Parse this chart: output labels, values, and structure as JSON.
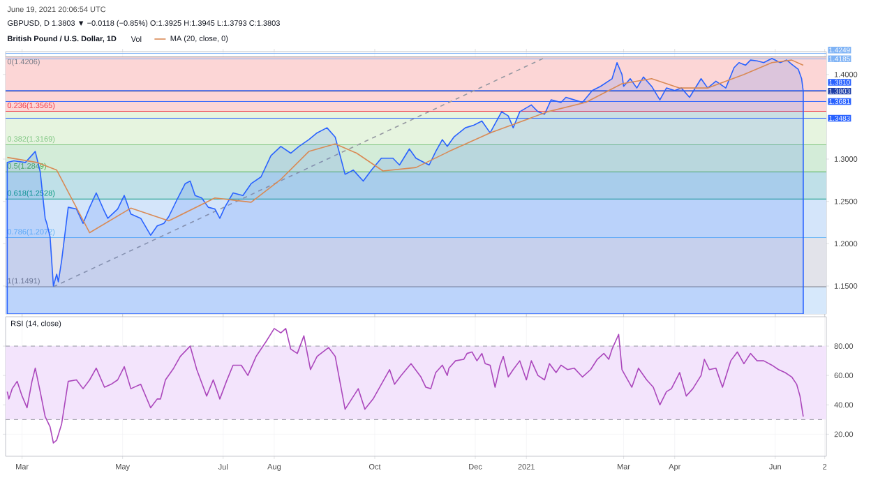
{
  "chart_data": [
    {
      "type": "line",
      "title": "British Pound / U.S. Dollar, 1D",
      "subtitle": "GBPUSD, D  1.3803 ▼ −0.0118 (−0.85%) O:1.3925 H:1.3945 L:1.3793 C:1.3803",
      "annotations": [
        "June 19, 2021 20:06:54 UTC",
        "Vol"
      ],
      "xlim": [
        "2020-02-20",
        "2021-07-02"
      ],
      "xticks": [
        {
          "value": "2020-03-01",
          "label": null
        },
        {
          "value": "2020-05-01",
          "label": null
        },
        {
          "value": "2020-07-01",
          "label": null
        },
        {
          "value": "2020-08-01",
          "label": null
        },
        {
          "value": "2020-10-01",
          "label": null
        },
        {
          "value": "2020-12-01",
          "label": null
        },
        {
          "value": "2021-01-01",
          "label": null
        },
        {
          "value": "2021-03-01",
          "label": null
        },
        {
          "value": "2021-04-01",
          "label": null
        },
        {
          "value": "2021-06-01",
          "label": null
        },
        {
          "value": "2021-07-01",
          "label": null
        }
      ],
      "ylim": [
        1.117,
        1.427
      ],
      "yticks": [
        {
          "value": 1.15,
          "label": "1.1500"
        },
        {
          "value": 1.2,
          "label": "1.2000"
        },
        {
          "value": 1.25,
          "label": "1.2500"
        },
        {
          "value": 1.3,
          "label": "1.3000"
        },
        {
          "value": 1.4,
          "label": "1.4000"
        }
      ],
      "y2lim": [
        1.117,
        1.427
      ],
      "tick_labels": "y",
      "grid": true,
      "legend": "top left",
      "marker": "none",
      "bands": [
        {
          "axis": "y",
          "from": 1.3565,
          "to": 1.4206,
          "color": "#fcd6d6"
        },
        {
          "axis": "y",
          "from": 1.3169,
          "to": 1.3565,
          "color": "#e6f4df"
        },
        {
          "axis": "y",
          "from": 1.2849,
          "to": 1.3169,
          "color": "#d3ecd8"
        },
        {
          "axis": "y",
          "from": 1.2528,
          "to": 1.2849,
          "color": "#bfe0e8"
        },
        {
          "axis": "y",
          "from": 1.2072,
          "to": 1.2528,
          "color": "#d4e5fa"
        },
        {
          "axis": "y",
          "from": 1.1491,
          "to": 1.2072,
          "color": "#e2e3ea"
        },
        {
          "axis": "y",
          "from": 1.117,
          "to": 1.1491,
          "color": "#d6e8fb"
        }
      ],
      "ref_lines": [
        {
          "axis": "y",
          "value": 1.4206,
          "label": "0(1.4206)",
          "color": "#787b86"
        },
        {
          "axis": "y",
          "value": 1.3565,
          "label": "0.236(1.3565)",
          "color": "#f23645"
        },
        {
          "axis": "y",
          "value": 1.3169,
          "label": "0.382(1.3169)",
          "color": "#81c784"
        },
        {
          "axis": "y",
          "value": 1.2849,
          "label": "0.5(1.2849)",
          "color": "#4caf50"
        },
        {
          "axis": "y",
          "value": 1.2528,
          "label": "0.618(1.2528)",
          "color": "#089981"
        },
        {
          "axis": "y",
          "value": 1.2072,
          "label": "0.786(1.2072)",
          "color": "#64b5f6"
        },
        {
          "axis": "y",
          "value": 1.1491,
          "label": "1(1.1491)",
          "color": "#787b86"
        },
        {
          "axis": "y2",
          "value": 1.4249,
          "label": "1.4249",
          "color": "#7fb3f5"
        },
        {
          "axis": "y2",
          "value": 1.4185,
          "label": "1.4185",
          "color": "#7fb3f5"
        },
        {
          "axis": "y2",
          "value": 1.381,
          "label": "1.3810",
          "color": "#2962ff"
        },
        {
          "axis": "y2",
          "value": 1.3803,
          "label": "1.3803",
          "color": "#1e3fa8"
        },
        {
          "axis": "y2",
          "value": 1.3681,
          "label": "1.3681",
          "color": "#2962ff"
        },
        {
          "axis": "y2",
          "value": 1.3483,
          "label": "1.3483",
          "color": "#2962ff"
        }
      ],
      "series": [
        {
          "type": "line",
          "color": "#9598a1",
          "line_style": "dashed",
          "x": [
            "2020-03-20",
            "2021-01-13"
          ],
          "values": [
            1.1491,
            1.4206
          ]
        },
        {
          "type": "area",
          "color": "#2962ff",
          "x": [
            "2020-02-21",
            "2020-02-25",
            "2020-03-03",
            "2020-03-09",
            "2020-03-12",
            "2020-03-15",
            "2020-03-16",
            "2020-03-18",
            "2020-03-20",
            "2020-03-22",
            "2020-03-23",
            "2020-03-25",
            "2020-03-29",
            "2020-04-03",
            "2020-04-07",
            "2020-04-11",
            "2020-04-15",
            "2020-04-20",
            "2020-04-22",
            "2020-04-28",
            "2020-05-02",
            "2020-05-06",
            "2020-05-12",
            "2020-05-18",
            "2020-05-22",
            "2020-05-26",
            "2020-05-29",
            "2020-06-03",
            "2020-06-08",
            "2020-06-11",
            "2020-06-14",
            "2020-06-18",
            "2020-06-22",
            "2020-06-26",
            "2020-06-29",
            "2020-07-02",
            "2020-07-07",
            "2020-07-13",
            "2020-07-18",
            "2020-07-24",
            "2020-07-30",
            "2020-08-05",
            "2020-08-11",
            "2020-08-16",
            "2020-08-22",
            "2020-08-27",
            "2020-09-02",
            "2020-09-07",
            "2020-09-13",
            "2020-09-18",
            "2020-09-24",
            "2020-09-29",
            "2020-10-05",
            "2020-10-12",
            "2020-10-16",
            "2020-10-22",
            "2020-10-26",
            "2020-10-29",
            "2020-11-03",
            "2020-11-07",
            "2020-11-11",
            "2020-11-14",
            "2020-11-18",
            "2020-11-25",
            "2020-11-30",
            "2020-12-05",
            "2020-12-10",
            "2020-12-17",
            "2020-12-21",
            "2020-12-24",
            "2020-12-28",
            "2021-01-04",
            "2021-01-08",
            "2021-01-12",
            "2021-01-16",
            "2021-01-22",
            "2021-01-25",
            "2021-01-30",
            "2021-02-04",
            "2021-02-10",
            "2021-02-15",
            "2021-02-22",
            "2021-02-25",
            "2021-02-28",
            "2021-03-01",
            "2021-03-05",
            "2021-03-09",
            "2021-03-13",
            "2021-03-18",
            "2021-03-23",
            "2021-03-27",
            "2021-04-01",
            "2021-04-05",
            "2021-04-10",
            "2021-04-17",
            "2021-04-21",
            "2021-04-26",
            "2021-05-02",
            "2021-05-07",
            "2021-05-10",
            "2021-05-14",
            "2021-05-17",
            "2021-05-21",
            "2021-05-25",
            "2021-05-30",
            "2021-06-04",
            "2021-06-08",
            "2021-06-11",
            "2021-06-15",
            "2021-06-17",
            "2021-06-18"
          ],
          "values": [
            1.296,
            1.298,
            1.296,
            1.309,
            1.285,
            1.23,
            1.224,
            1.208,
            1.15,
            1.164,
            1.155,
            1.18,
            1.243,
            1.241,
            1.224,
            1.243,
            1.26,
            1.238,
            1.23,
            1.241,
            1.257,
            1.235,
            1.23,
            1.21,
            1.221,
            1.224,
            1.232,
            1.252,
            1.271,
            1.274,
            1.257,
            1.254,
            1.243,
            1.241,
            1.23,
            1.243,
            1.26,
            1.257,
            1.271,
            1.279,
            1.304,
            1.315,
            1.307,
            1.315,
            1.323,
            1.331,
            1.337,
            1.326,
            1.282,
            1.287,
            1.274,
            1.287,
            1.301,
            1.301,
            1.293,
            1.312,
            1.301,
            1.298,
            1.293,
            1.309,
            1.323,
            1.315,
            1.326,
            1.337,
            1.34,
            1.345,
            1.331,
            1.356,
            1.351,
            1.337,
            1.356,
            1.364,
            1.356,
            1.353,
            1.37,
            1.367,
            1.373,
            1.37,
            1.367,
            1.381,
            1.386,
            1.395,
            1.414,
            1.4,
            1.386,
            1.395,
            1.384,
            1.397,
            1.386,
            1.37,
            1.384,
            1.381,
            1.384,
            1.373,
            1.395,
            1.384,
            1.392,
            1.384,
            1.408,
            1.414,
            1.411,
            1.417,
            1.416,
            1.414,
            1.419,
            1.414,
            1.417,
            1.412,
            1.406,
            1.395,
            1.38
          ]
        },
        {
          "name": "MA (20, close, 0)",
          "type": "line",
          "color": "#d98a55",
          "x": [
            "2020-02-21",
            "2020-03-10",
            "2020-03-22",
            "2020-04-11",
            "2020-05-06",
            "2020-05-29",
            "2020-06-26",
            "2020-07-18",
            "2020-08-05",
            "2020-08-22",
            "2020-09-07",
            "2020-09-20",
            "2020-10-06",
            "2020-10-26",
            "2020-11-15",
            "2020-12-10",
            "2021-01-14",
            "2021-02-06",
            "2021-02-28",
            "2021-03-18",
            "2021-04-04",
            "2021-04-21",
            "2021-05-13",
            "2021-05-30",
            "2021-06-11",
            "2021-06-18"
          ],
          "values": [
            1.302,
            1.296,
            1.287,
            1.213,
            1.242,
            1.227,
            1.254,
            1.249,
            1.276,
            1.309,
            1.318,
            1.307,
            1.286,
            1.29,
            1.309,
            1.331,
            1.356,
            1.367,
            1.389,
            1.395,
            1.384,
            1.384,
            1.4,
            1.414,
            1.417,
            1.411
          ]
        }
      ]
    },
    {
      "type": "line",
      "title": "RSI (14, close)",
      "xlim": [
        "2020-02-20",
        "2021-07-02"
      ],
      "xticks": [
        {
          "value": "2020-03-01",
          "label": "Mar"
        },
        {
          "value": "2020-05-01",
          "label": "May"
        },
        {
          "value": "2020-07-01",
          "label": "Jul"
        },
        {
          "value": "2020-08-01",
          "label": "Aug"
        },
        {
          "value": "2020-10-01",
          "label": "Oct"
        },
        {
          "value": "2020-12-01",
          "label": "Dec"
        },
        {
          "value": "2021-01-01",
          "label": "2021"
        },
        {
          "value": "2021-03-01",
          "label": "Mar"
        },
        {
          "value": "2021-04-01",
          "label": "Apr"
        },
        {
          "value": "2021-06-01",
          "label": "Jun"
        },
        {
          "value": "2021-07-01",
          "label": "2"
        }
      ],
      "ylim": [
        5,
        100
      ],
      "yticks": [
        {
          "value": 20,
          "label": "20.00"
        },
        {
          "value": 40,
          "label": "40.00"
        },
        {
          "value": 60,
          "label": "60.00"
        },
        {
          "value": 80,
          "label": "80.00"
        }
      ],
      "grid": true,
      "marker": "none",
      "bands": [
        {
          "axis": "y",
          "from": 30,
          "to": 80,
          "color": "#f3e4fc"
        }
      ],
      "ref_lines": [
        {
          "axis": "y",
          "value": 80,
          "color": "#9598a1",
          "line_style": "dashed"
        },
        {
          "axis": "y",
          "value": 30,
          "color": "#9598a1",
          "line_style": "dashed"
        }
      ],
      "series": [
        {
          "color": "#ab47bc",
          "x": [
            "2020-02-21",
            "2020-02-22",
            "2020-02-24",
            "2020-02-27",
            "2020-03-01",
            "2020-03-04",
            "2020-03-07",
            "2020-03-09",
            "2020-03-12",
            "2020-03-15",
            "2020-03-18",
            "2020-03-20",
            "2020-03-22",
            "2020-03-25",
            "2020-03-29",
            "2020-04-03",
            "2020-04-07",
            "2020-04-11",
            "2020-04-15",
            "2020-04-20",
            "2020-04-24",
            "2020-04-28",
            "2020-05-02",
            "2020-05-06",
            "2020-05-12",
            "2020-05-18",
            "2020-05-22",
            "2020-05-24",
            "2020-05-27",
            "2020-06-01",
            "2020-06-05",
            "2020-06-11",
            "2020-06-15",
            "2020-06-21",
            "2020-06-25",
            "2020-06-29",
            "2020-07-03",
            "2020-07-07",
            "2020-07-12",
            "2020-07-16",
            "2020-07-21",
            "2020-07-27",
            "2020-08-01",
            "2020-08-05",
            "2020-08-08",
            "2020-08-11",
            "2020-08-15",
            "2020-08-19",
            "2020-08-23",
            "2020-08-27",
            "2020-09-03",
            "2020-09-07",
            "2020-09-13",
            "2020-09-17",
            "2020-09-21",
            "2020-09-25",
            "2020-09-30",
            "2020-10-06",
            "2020-10-10",
            "2020-10-13",
            "2020-10-17",
            "2020-10-23",
            "2020-10-29",
            "2020-11-01",
            "2020-11-04",
            "2020-11-07",
            "2020-11-11",
            "2020-11-14",
            "2020-11-15",
            "2020-11-19",
            "2020-11-24",
            "2020-11-26",
            "2020-11-29",
            "2020-12-02",
            "2020-12-05",
            "2020-12-07",
            "2020-12-10",
            "2020-12-13",
            "2020-12-16",
            "2020-12-18",
            "2020-12-21",
            "2020-12-24",
            "2020-12-28",
            "2021-01-01",
            "2021-01-04",
            "2021-01-08",
            "2021-01-12",
            "2021-01-15",
            "2021-01-19",
            "2021-01-22",
            "2021-01-26",
            "2021-01-30",
            "2021-02-04",
            "2021-02-09",
            "2021-02-13",
            "2021-02-17",
            "2021-02-20",
            "2021-02-22",
            "2021-02-26",
            "2021-02-28",
            "2021-03-02",
            "2021-03-06",
            "2021-03-10",
            "2021-03-15",
            "2021-03-19",
            "2021-03-23",
            "2021-03-27",
            "2021-03-30",
            "2021-04-04",
            "2021-04-08",
            "2021-04-12",
            "2021-04-17",
            "2021-04-19",
            "2021-04-22",
            "2021-04-26",
            "2021-04-30",
            "2021-05-05",
            "2021-05-09",
            "2021-05-13",
            "2021-05-17",
            "2021-05-21",
            "2021-05-25",
            "2021-05-30",
            "2021-06-03",
            "2021-06-07",
            "2021-06-11",
            "2021-06-14",
            "2021-06-16",
            "2021-06-18"
          ],
          "values": [
            49,
            44,
            51,
            56,
            46,
            38,
            56,
            65,
            49,
            32,
            25,
            14,
            16,
            27,
            56,
            57,
            51,
            57,
            65,
            52,
            54,
            57,
            66,
            51,
            54,
            38,
            44,
            44,
            57,
            65,
            73,
            80,
            64,
            46,
            57,
            44,
            56,
            67,
            67,
            60,
            73,
            83,
            92,
            89,
            92,
            78,
            75,
            87,
            64,
            73,
            79,
            73,
            37,
            44,
            51,
            37,
            44,
            56,
            64,
            54,
            60,
            68,
            59,
            52,
            51,
            62,
            67,
            60,
            65,
            70,
            71,
            75,
            76,
            70,
            75,
            68,
            67,
            52,
            67,
            73,
            59,
            64,
            70,
            57,
            70,
            60,
            57,
            68,
            62,
            67,
            64,
            65,
            59,
            64,
            71,
            75,
            71,
            78,
            88,
            64,
            60,
            52,
            65,
            57,
            52,
            40,
            49,
            51,
            62,
            46,
            51,
            60,
            71,
            64,
            65,
            52,
            70,
            76,
            68,
            75,
            70,
            70,
            67,
            64,
            62,
            59,
            54,
            46,
            32
          ]
        }
      ]
    }
  ]
}
